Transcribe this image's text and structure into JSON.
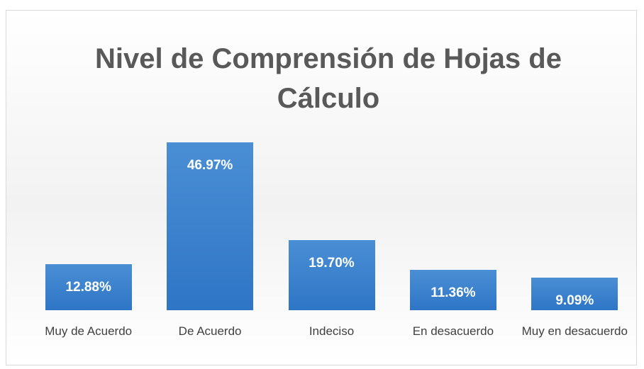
{
  "chart_data": {
    "type": "bar",
    "title": "Nivel de Comprensión de Hojas de Cálculo",
    "categories": [
      "Muy de Acuerdo",
      "De Acuerdo",
      "Indeciso",
      "En desacuerdo",
      "Muy en desacuerdo"
    ],
    "values": [
      12.88,
      46.97,
      19.7,
      11.36,
      9.09
    ],
    "value_labels": [
      "12.88%",
      "46.97%",
      "19.70%",
      "11.36%",
      "9.09%"
    ],
    "color": "#4a8fd4"
  }
}
